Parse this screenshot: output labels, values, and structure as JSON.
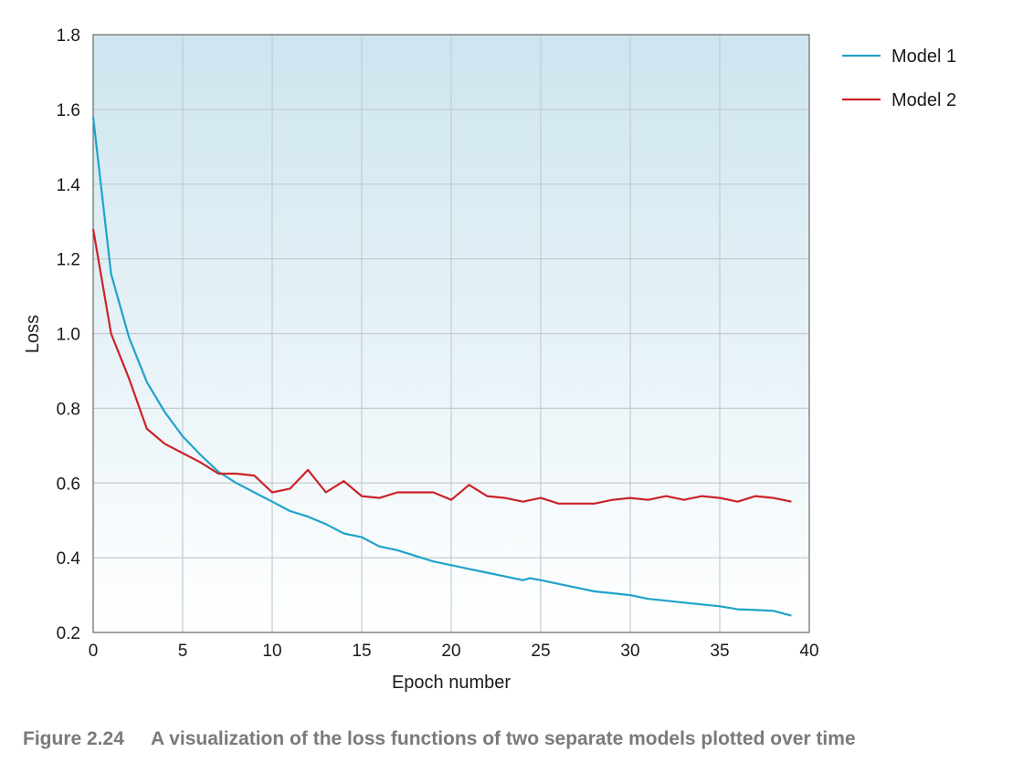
{
  "chart_data": {
    "type": "line",
    "xlabel": "Epoch number",
    "ylabel": "Loss",
    "xlim": [
      0,
      40
    ],
    "ylim": [
      0.2,
      1.8
    ],
    "xticks": [
      0,
      5,
      10,
      15,
      20,
      25,
      30,
      35,
      40
    ],
    "yticks": [
      0.2,
      0.4,
      0.6,
      0.8,
      1.0,
      1.2,
      1.4,
      1.6,
      1.8
    ],
    "ytick_labels": [
      "0.2",
      "0.4",
      "0.6",
      "0.8",
      "1.0",
      "1.2",
      "1.4",
      "1.6",
      "1.8"
    ],
    "grid": true,
    "legend_position": "outside-right-top",
    "series": [
      {
        "name": "Model 1",
        "color": "#1fa3c8",
        "x": [
          0,
          1,
          2,
          3,
          4,
          5,
          6,
          7,
          8,
          9,
          10,
          11,
          12,
          13,
          14,
          15,
          16,
          17,
          18,
          19,
          20,
          21,
          22,
          23,
          24,
          24.4,
          25,
          26,
          27,
          28,
          29,
          30,
          31,
          32,
          33,
          34,
          35,
          36,
          37,
          38,
          39
        ],
        "y": [
          1.58,
          1.16,
          0.99,
          0.87,
          0.79,
          0.725,
          0.675,
          0.63,
          0.6,
          0.575,
          0.55,
          0.525,
          0.51,
          0.49,
          0.465,
          0.455,
          0.43,
          0.42,
          0.405,
          0.39,
          0.38,
          0.37,
          0.36,
          0.35,
          0.34,
          0.345,
          0.34,
          0.33,
          0.32,
          0.31,
          0.305,
          0.3,
          0.29,
          0.285,
          0.28,
          0.275,
          0.27,
          0.262,
          0.26,
          0.258,
          0.245
        ]
      },
      {
        "name": "Model 2",
        "color": "#cc2229",
        "x": [
          0,
          1,
          2,
          3,
          4,
          5,
          6,
          7,
          8,
          9,
          10,
          11,
          12,
          13,
          14,
          15,
          16,
          17,
          18,
          19,
          20,
          21,
          22,
          23,
          24,
          25,
          26,
          27,
          28,
          29,
          30,
          31,
          32,
          33,
          34,
          35,
          36,
          37,
          38,
          39
        ],
        "y": [
          1.28,
          1.0,
          0.88,
          0.745,
          0.705,
          0.68,
          0.655,
          0.625,
          0.625,
          0.62,
          0.575,
          0.585,
          0.635,
          0.575,
          0.605,
          0.565,
          0.56,
          0.575,
          0.575,
          0.575,
          0.555,
          0.595,
          0.565,
          0.56,
          0.55,
          0.56,
          0.545,
          0.545,
          0.545,
          0.555,
          0.56,
          0.555,
          0.565,
          0.555,
          0.565,
          0.56,
          0.55,
          0.565,
          0.56,
          0.55
        ]
      }
    ]
  },
  "caption": {
    "label": "Figure 2.24",
    "text": "A visualization of the loss functions of two separate models plotted over time"
  }
}
